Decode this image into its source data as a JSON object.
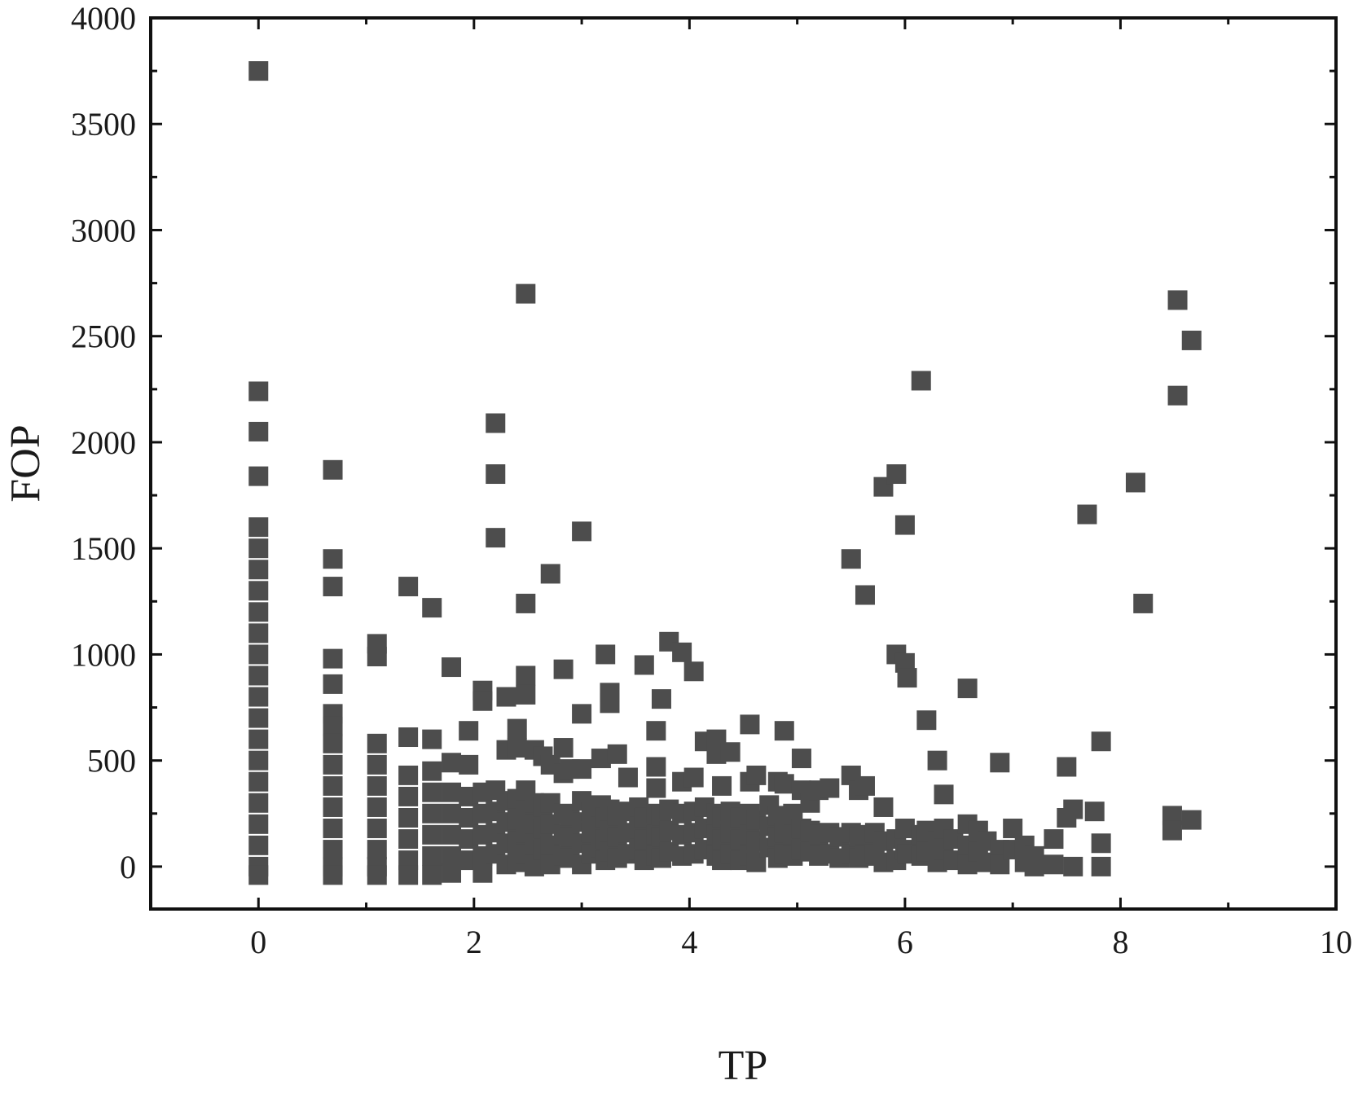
{
  "chart_data": {
    "type": "scatter",
    "title": "",
    "xlabel": "TP",
    "ylabel": "FOP",
    "xlim": [
      -1,
      10
    ],
    "ylim": [
      -200,
      4000
    ],
    "x_ticks": [
      "0",
      "2",
      "4",
      "6",
      "8",
      "10"
    ],
    "y_ticks": [
      "0",
      "500",
      "1000",
      "1500",
      "2000",
      "2500",
      "3000",
      "3500",
      "4000"
    ],
    "grid": false,
    "legend": "none",
    "marker": "square",
    "marker_color": "#4d4d4d",
    "points": [
      [
        0,
        3750
      ],
      [
        0,
        2240
      ],
      [
        0,
        2050
      ],
      [
        0,
        1840
      ],
      [
        0,
        1600
      ],
      [
        0,
        1500
      ],
      [
        0,
        1400
      ],
      [
        0,
        1300
      ],
      [
        0,
        1200
      ],
      [
        0,
        1100
      ],
      [
        0,
        1000
      ],
      [
        0,
        900
      ],
      [
        0,
        800
      ],
      [
        0,
        700
      ],
      [
        0,
        600
      ],
      [
        0,
        500
      ],
      [
        0,
        400
      ],
      [
        0,
        300
      ],
      [
        0,
        200
      ],
      [
        0,
        100
      ],
      [
        0,
        0
      ],
      [
        0,
        -40
      ],
      [
        0.69,
        1870
      ],
      [
        0.69,
        1450
      ],
      [
        0.69,
        1320
      ],
      [
        0.69,
        980
      ],
      [
        0.69,
        860
      ],
      [
        0.69,
        720
      ],
      [
        0.69,
        660
      ],
      [
        0.69,
        580
      ],
      [
        0.69,
        480
      ],
      [
        0.69,
        380
      ],
      [
        0.69,
        280
      ],
      [
        0.69,
        180
      ],
      [
        0.69,
        80
      ],
      [
        0.69,
        0
      ],
      [
        0.69,
        -40
      ],
      [
        1.1,
        1050
      ],
      [
        1.1,
        990
      ],
      [
        1.1,
        580
      ],
      [
        1.1,
        480
      ],
      [
        1.1,
        380
      ],
      [
        1.1,
        280
      ],
      [
        1.1,
        180
      ],
      [
        1.1,
        80
      ],
      [
        1.1,
        0
      ],
      [
        1.1,
        -40
      ],
      [
        1.39,
        1320
      ],
      [
        1.39,
        610
      ],
      [
        1.39,
        430
      ],
      [
        1.39,
        330
      ],
      [
        1.39,
        230
      ],
      [
        1.39,
        130
      ],
      [
        1.39,
        30
      ],
      [
        1.39,
        -40
      ],
      [
        1.61,
        1220
      ],
      [
        1.61,
        600
      ],
      [
        1.61,
        450
      ],
      [
        1.61,
        350
      ],
      [
        1.61,
        250
      ],
      [
        1.61,
        150
      ],
      [
        1.61,
        50
      ],
      [
        1.61,
        -40
      ],
      [
        1.79,
        940
      ],
      [
        1.79,
        490
      ],
      [
        1.79,
        350
      ],
      [
        1.79,
        250
      ],
      [
        1.79,
        150
      ],
      [
        1.79,
        50
      ],
      [
        1.79,
        -30
      ],
      [
        1.95,
        640
      ],
      [
        1.95,
        480
      ],
      [
        1.95,
        330
      ],
      [
        1.95,
        230
      ],
      [
        1.95,
        130
      ],
      [
        1.95,
        30
      ],
      [
        2.08,
        830
      ],
      [
        2.08,
        780
      ],
      [
        2.08,
        350
      ],
      [
        2.08,
        250
      ],
      [
        2.08,
        150
      ],
      [
        2.08,
        50
      ],
      [
        2.08,
        -30
      ],
      [
        2.2,
        2090
      ],
      [
        2.2,
        1850
      ],
      [
        2.2,
        1550
      ],
      [
        2.2,
        360
      ],
      [
        2.2,
        260
      ],
      [
        2.2,
        160
      ],
      [
        2.2,
        60
      ],
      [
        2.3,
        800
      ],
      [
        2.3,
        550
      ],
      [
        2.3,
        310
      ],
      [
        2.3,
        210
      ],
      [
        2.3,
        110
      ],
      [
        2.3,
        10
      ],
      [
        2.4,
        650
      ],
      [
        2.4,
        560
      ],
      [
        2.4,
        320
      ],
      [
        2.4,
        220
      ],
      [
        2.4,
        120
      ],
      [
        2.4,
        20
      ],
      [
        2.48,
        2700
      ],
      [
        2.48,
        1240
      ],
      [
        2.48,
        900
      ],
      [
        2.48,
        810
      ],
      [
        2.48,
        360
      ],
      [
        2.48,
        260
      ],
      [
        2.48,
        160
      ],
      [
        2.48,
        60
      ],
      [
        2.56,
        550
      ],
      [
        2.56,
        300
      ],
      [
        2.56,
        200
      ],
      [
        2.56,
        100
      ],
      [
        2.56,
        0
      ],
      [
        2.64,
        520
      ],
      [
        2.64,
        280
      ],
      [
        2.64,
        180
      ],
      [
        2.64,
        80
      ],
      [
        2.71,
        1380
      ],
      [
        2.71,
        480
      ],
      [
        2.71,
        300
      ],
      [
        2.71,
        200
      ],
      [
        2.71,
        100
      ],
      [
        2.71,
        10
      ],
      [
        2.83,
        930
      ],
      [
        2.83,
        560
      ],
      [
        2.83,
        440
      ],
      [
        2.83,
        250
      ],
      [
        2.83,
        150
      ],
      [
        2.83,
        50
      ],
      [
        2.89,
        460
      ],
      [
        2.89,
        240
      ],
      [
        2.89,
        140
      ],
      [
        2.89,
        40
      ],
      [
        3.0,
        1580
      ],
      [
        3.0,
        720
      ],
      [
        3.0,
        460
      ],
      [
        3.0,
        310
      ],
      [
        3.0,
        210
      ],
      [
        3.0,
        110
      ],
      [
        3.0,
        10
      ],
      [
        3.09,
        260
      ],
      [
        3.09,
        160
      ],
      [
        3.09,
        60
      ],
      [
        3.18,
        510
      ],
      [
        3.18,
        290
      ],
      [
        3.18,
        190
      ],
      [
        3.18,
        90
      ],
      [
        3.22,
        1000
      ],
      [
        3.22,
        230
      ],
      [
        3.22,
        130
      ],
      [
        3.22,
        30
      ],
      [
        3.26,
        820
      ],
      [
        3.26,
        770
      ],
      [
        3.26,
        270
      ],
      [
        3.26,
        170
      ],
      [
        3.26,
        70
      ],
      [
        3.33,
        530
      ],
      [
        3.33,
        240
      ],
      [
        3.33,
        140
      ],
      [
        3.33,
        40
      ],
      [
        3.43,
        420
      ],
      [
        3.43,
        260
      ],
      [
        3.43,
        160
      ],
      [
        3.43,
        60
      ],
      [
        3.53,
        280
      ],
      [
        3.53,
        180
      ],
      [
        3.53,
        80
      ],
      [
        3.58,
        950
      ],
      [
        3.58,
        230
      ],
      [
        3.58,
        130
      ],
      [
        3.58,
        30
      ],
      [
        3.69,
        640
      ],
      [
        3.69,
        470
      ],
      [
        3.69,
        370
      ],
      [
        3.69,
        250
      ],
      [
        3.69,
        150
      ],
      [
        3.69,
        50
      ],
      [
        3.74,
        790
      ],
      [
        3.74,
        240
      ],
      [
        3.74,
        140
      ],
      [
        3.74,
        40
      ],
      [
        3.81,
        1060
      ],
      [
        3.81,
        270
      ],
      [
        3.81,
        170
      ],
      [
        3.81,
        70
      ],
      [
        3.93,
        1010
      ],
      [
        3.93,
        400
      ],
      [
        3.93,
        250
      ],
      [
        3.93,
        150
      ],
      [
        3.93,
        50
      ],
      [
        4.04,
        920
      ],
      [
        4.04,
        420
      ],
      [
        4.04,
        260
      ],
      [
        4.04,
        160
      ],
      [
        4.04,
        60
      ],
      [
        4.14,
        590
      ],
      [
        4.14,
        280
      ],
      [
        4.14,
        180
      ],
      [
        4.14,
        80
      ],
      [
        4.25,
        600
      ],
      [
        4.25,
        530
      ],
      [
        4.25,
        250
      ],
      [
        4.25,
        150
      ],
      [
        4.25,
        50
      ],
      [
        4.3,
        380
      ],
      [
        4.3,
        230
      ],
      [
        4.3,
        130
      ],
      [
        4.3,
        30
      ],
      [
        4.38,
        540
      ],
      [
        4.38,
        260
      ],
      [
        4.38,
        160
      ],
      [
        4.38,
        60
      ],
      [
        4.47,
        230
      ],
      [
        4.47,
        130
      ],
      [
        4.47,
        30
      ],
      [
        4.56,
        670
      ],
      [
        4.56,
        400
      ],
      [
        4.56,
        250
      ],
      [
        4.56,
        150
      ],
      [
        4.56,
        50
      ],
      [
        4.62,
        430
      ],
      [
        4.62,
        220
      ],
      [
        4.62,
        120
      ],
      [
        4.62,
        20
      ],
      [
        4.74,
        290
      ],
      [
        4.74,
        190
      ],
      [
        4.74,
        90
      ],
      [
        4.82,
        400
      ],
      [
        4.82,
        240
      ],
      [
        4.82,
        140
      ],
      [
        4.82,
        40
      ],
      [
        4.88,
        640
      ],
      [
        4.88,
        390
      ],
      [
        4.88,
        160
      ],
      [
        4.88,
        60
      ],
      [
        4.96,
        250
      ],
      [
        4.96,
        150
      ],
      [
        4.96,
        50
      ],
      [
        5.04,
        510
      ],
      [
        5.04,
        360
      ],
      [
        5.04,
        180
      ],
      [
        5.04,
        80
      ],
      [
        5.12,
        300
      ],
      [
        5.12,
        170
      ],
      [
        5.12,
        70
      ],
      [
        5.2,
        360
      ],
      [
        5.2,
        150
      ],
      [
        5.2,
        50
      ],
      [
        5.3,
        370
      ],
      [
        5.3,
        160
      ],
      [
        5.3,
        60
      ],
      [
        5.39,
        140
      ],
      [
        5.39,
        40
      ],
      [
        5.5,
        1450
      ],
      [
        5.5,
        430
      ],
      [
        5.5,
        160
      ],
      [
        5.5,
        60
      ],
      [
        5.57,
        360
      ],
      [
        5.57,
        140
      ],
      [
        5.57,
        40
      ],
      [
        5.63,
        1280
      ],
      [
        5.63,
        380
      ],
      [
        5.63,
        150
      ],
      [
        5.63,
        50
      ],
      [
        5.72,
        160
      ],
      [
        5.72,
        60
      ],
      [
        5.8,
        1790
      ],
      [
        5.8,
        280
      ],
      [
        5.8,
        120
      ],
      [
        5.8,
        20
      ],
      [
        5.92,
        1850
      ],
      [
        5.92,
        1000
      ],
      [
        5.92,
        130
      ],
      [
        5.92,
        30
      ],
      [
        6.0,
        1610
      ],
      [
        6.0,
        960
      ],
      [
        6.0,
        180
      ],
      [
        6.0,
        80
      ],
      [
        6.02,
        890
      ],
      [
        6.02,
        60
      ],
      [
        6.15,
        2290
      ],
      [
        6.15,
        150
      ],
      [
        6.15,
        50
      ],
      [
        6.2,
        690
      ],
      [
        6.2,
        170
      ],
      [
        6.2,
        70
      ],
      [
        6.3,
        500
      ],
      [
        6.3,
        120
      ],
      [
        6.3,
        20
      ],
      [
        6.36,
        340
      ],
      [
        6.36,
        180
      ],
      [
        6.36,
        80
      ],
      [
        6.45,
        130
      ],
      [
        6.45,
        30
      ],
      [
        6.58,
        840
      ],
      [
        6.58,
        200
      ],
      [
        6.58,
        100
      ],
      [
        6.58,
        10
      ],
      [
        6.68,
        170
      ],
      [
        6.68,
        70
      ],
      [
        6.76,
        120
      ],
      [
        6.76,
        20
      ],
      [
        6.88,
        490
      ],
      [
        6.88,
        80
      ],
      [
        6.88,
        10
      ],
      [
        7.0,
        180
      ],
      [
        7.0,
        80
      ],
      [
        7.11,
        100
      ],
      [
        7.11,
        20
      ],
      [
        7.2,
        50
      ],
      [
        7.2,
        0
      ],
      [
        7.38,
        130
      ],
      [
        7.38,
        10
      ],
      [
        7.5,
        470
      ],
      [
        7.5,
        230
      ],
      [
        7.56,
        270
      ],
      [
        7.56,
        0
      ],
      [
        7.69,
        1660
      ],
      [
        7.76,
        260
      ],
      [
        7.82,
        590
      ],
      [
        7.82,
        110
      ],
      [
        7.82,
        0
      ],
      [
        8.14,
        1810
      ],
      [
        8.21,
        1240
      ],
      [
        8.48,
        240
      ],
      [
        8.48,
        170
      ],
      [
        8.53,
        2670
      ],
      [
        8.53,
        2220
      ],
      [
        8.66,
        2480
      ],
      [
        8.66,
        220
      ]
    ]
  }
}
